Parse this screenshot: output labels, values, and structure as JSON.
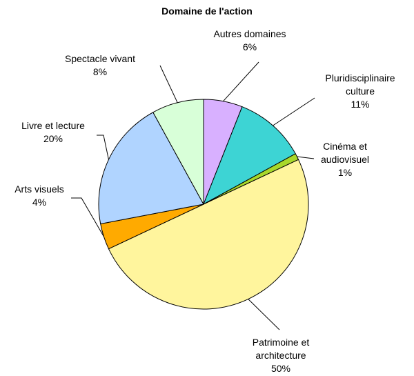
{
  "chart_data": {
    "type": "pie",
    "title": "Domaine de l'action",
    "categories": [
      "Autres domaines",
      "Pluridisciplinaire culture",
      "Cinéma et audiovisuel",
      "Patrimoine et architecture",
      "Arts visuels",
      "Livre et lecture",
      "Spectacle vivant"
    ],
    "values": [
      6,
      11,
      1,
      50,
      4,
      20,
      8
    ],
    "value_labels": [
      "6%",
      "11%",
      "1%",
      "50%",
      "4%",
      "20%",
      "8%"
    ],
    "colors": [
      "#d8b0ff",
      "#3dd4d4",
      "#a8d82a",
      "#fff59d",
      "#ffaa00",
      "#b0d4ff",
      "#d8ffd8"
    ]
  }
}
